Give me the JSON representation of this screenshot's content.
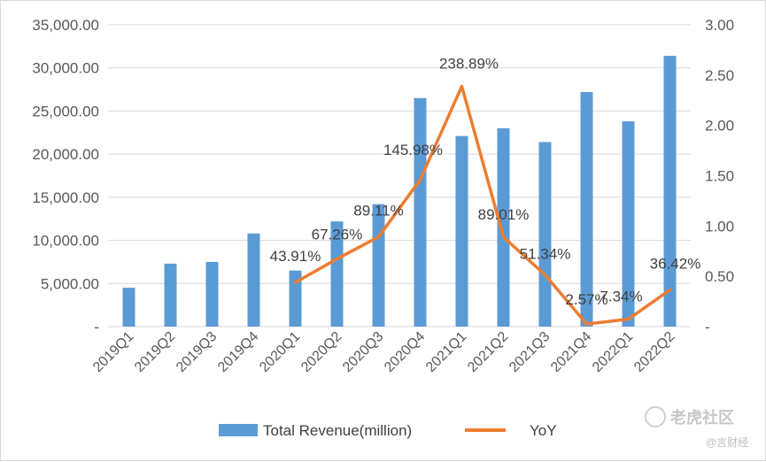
{
  "chart_data": {
    "type": "bar+line",
    "categories": [
      "2019Q1",
      "2019Q2",
      "2019Q3",
      "2019Q4",
      "2020Q1",
      "2020Q2",
      "2020Q3",
      "2020Q4",
      "2021Q1",
      "2021Q2",
      "2021Q3",
      "2021Q4",
      "2022Q1",
      "2022Q2"
    ],
    "series": [
      {
        "name": "Total Revenue(million)",
        "type": "bar",
        "axis": "left",
        "color": "#5b9bd5",
        "values": [
          4500,
          7300,
          7500,
          10800,
          6500,
          12200,
          14200,
          26500,
          22100,
          23000,
          21400,
          27200,
          23800,
          31400
        ]
      },
      {
        "name": "YoY",
        "type": "line",
        "axis": "right",
        "color": "#ed7d31",
        "values": [
          null,
          null,
          null,
          null,
          0.4391,
          0.6726,
          0.8911,
          1.4598,
          2.3889,
          0.8901,
          0.5134,
          0.0257,
          0.0734,
          0.3642
        ],
        "labels": [
          "",
          "",
          "",
          "",
          "43.91%",
          "67.26%",
          "89.11%",
          "145.98%",
          "238.89%",
          "89.01%",
          "51.34%",
          "2.57%",
          "7.34%",
          "36.42%"
        ]
      }
    ],
    "y_left": {
      "ylim": [
        0,
        35000
      ],
      "ticks": [
        "-",
        "5,000.00",
        "10,000.00",
        "15,000.00",
        "20,000.00",
        "25,000.00",
        "30,000.00",
        "35,000.00"
      ]
    },
    "y_right": {
      "ylim": [
        0,
        3
      ],
      "ticks": [
        "-",
        "0.50",
        "1.00",
        "1.50",
        "2.00",
        "2.50",
        "3.00"
      ]
    },
    "legend": {
      "placement": "bottom-center",
      "entries": [
        "Total Revenue(million)",
        "YoY"
      ]
    },
    "grid": true
  },
  "watermark": {
    "brand": "老虎社区",
    "sub": "@言财经"
  }
}
